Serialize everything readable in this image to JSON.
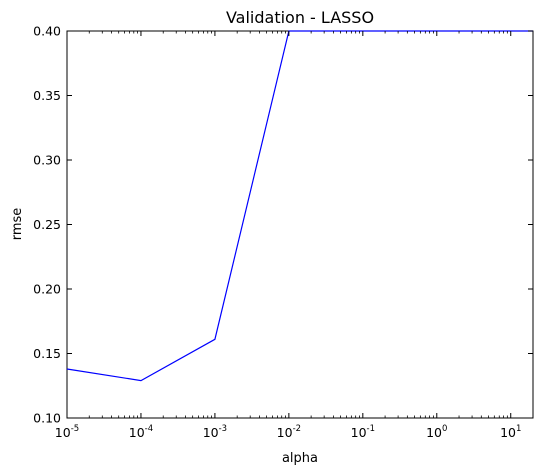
{
  "chart_data": {
    "type": "line",
    "title": "Validation - LASSO",
    "xlabel": "alpha",
    "ylabel": "rmse",
    "xscale": "log",
    "xlim": [
      1e-05,
      20
    ],
    "ylim": [
      0.1,
      0.4
    ],
    "grid": false,
    "line_color": "#0000ff",
    "x_ticks": [
      {
        "base": "10",
        "exp": "-5",
        "value": 1e-05
      },
      {
        "base": "10",
        "exp": "-4",
        "value": 0.0001
      },
      {
        "base": "10",
        "exp": "-3",
        "value": 0.001
      },
      {
        "base": "10",
        "exp": "-2",
        "value": 0.01
      },
      {
        "base": "10",
        "exp": "-1",
        "value": 0.1
      },
      {
        "base": "10",
        "exp": "0",
        "value": 1
      },
      {
        "base": "10",
        "exp": "1",
        "value": 10
      }
    ],
    "y_ticks": [
      "0.10",
      "0.15",
      "0.20",
      "0.25",
      "0.30",
      "0.35",
      "0.40"
    ],
    "series": [
      {
        "x": [
          1e-05,
          0.0001,
          0.001,
          0.01,
          0.1,
          1,
          10,
          20
        ],
        "y": [
          0.138,
          0.129,
          0.161,
          0.4,
          0.4,
          0.4,
          0.4,
          0.4
        ]
      }
    ]
  }
}
